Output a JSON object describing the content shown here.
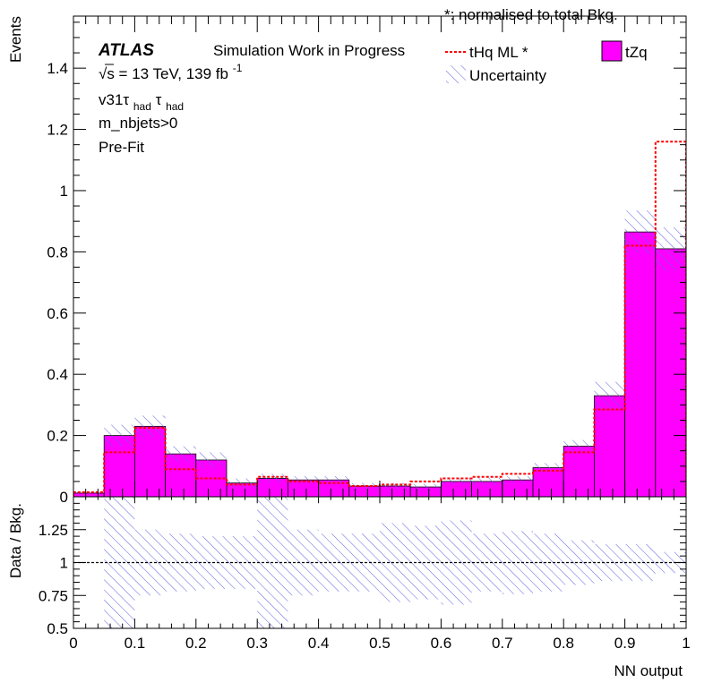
{
  "header": {
    "norm_note": "*: normalised to total Bkg.",
    "atlas": "ATLAS",
    "status": "Simulation Work in Progress",
    "energy": "√s = 13 TeV, 139 fb",
    "lumi_exp": "-1",
    "region_main": "v31τ",
    "region_sub1": "had",
    "region_tau2": "τ",
    "region_sub2": "had",
    "selection": "m_nbjets>0",
    "fit": "Pre-Fit"
  },
  "legend": {
    "signal": "tHq ML *",
    "uncertainty": "Uncertainty",
    "background": "tZq"
  },
  "colors": {
    "background_fill": "#ff00ff",
    "signal_line": "#ff0000",
    "uncertainty_hatch": "#6060e0",
    "ratio_line": "#000000"
  },
  "chart_data": [
    {
      "type": "bar",
      "panel": "main",
      "ylabel": "Events",
      "xlim": [
        0,
        1
      ],
      "ylim": [
        0,
        1.57
      ],
      "bin_edges": [
        0,
        0.05,
        0.1,
        0.15,
        0.2,
        0.25,
        0.3,
        0.35,
        0.4,
        0.45,
        0.5,
        0.55,
        0.6,
        0.65,
        0.7,
        0.75,
        0.8,
        0.85,
        0.9,
        0.95,
        1.0
      ],
      "yticks": [
        "0",
        "0.2",
        "0.4",
        "0.6",
        "0.8",
        "1",
        "1.2",
        "1.4"
      ],
      "series": [
        {
          "name": "tZq",
          "style": "filled",
          "values": [
            0.012,
            0.2,
            0.23,
            0.14,
            0.12,
            0.045,
            0.06,
            0.055,
            0.055,
            0.035,
            0.035,
            0.032,
            0.05,
            0.05,
            0.055,
            0.095,
            0.165,
            0.33,
            0.865,
            0.81
          ],
          "uncertainty": [
            0.004,
            0.035,
            0.035,
            0.025,
            0.025,
            0.015,
            0.015,
            0.012,
            0.012,
            0.01,
            0.01,
            0.01,
            0.01,
            0.012,
            0.012,
            0.015,
            0.02,
            0.045,
            0.07,
            0.07
          ]
        },
        {
          "name": "tHq ML *",
          "style": "dashed-step",
          "values": [
            0.015,
            0.145,
            0.225,
            0.09,
            0.06,
            0.04,
            0.065,
            0.05,
            0.045,
            0.035,
            0.04,
            0.05,
            0.06,
            0.065,
            0.075,
            0.085,
            0.145,
            0.285,
            0.82,
            1.16
          ]
        }
      ]
    },
    {
      "type": "bar",
      "panel": "ratio",
      "xlabel": "NN output",
      "ylabel": "Data / Bkg.",
      "xlim": [
        0,
        1
      ],
      "ylim": [
        0.5,
        1.5
      ],
      "xticks": [
        "0",
        "0.1",
        "0.2",
        "0.3",
        "0.4",
        "0.5",
        "0.6",
        "0.7",
        "0.8",
        "0.9",
        "1"
      ],
      "yticks": [
        "0.5",
        "0.75",
        "1",
        "1.25"
      ],
      "reference_line": 1,
      "uncertainty_band": [
        [
          1,
          1
        ],
        [
          0.5,
          1.5
        ],
        [
          0.75,
          1.25
        ],
        [
          0.78,
          1.22
        ],
        [
          0.8,
          1.2
        ],
        [
          0.8,
          1.2
        ],
        [
          0.5,
          1.5
        ],
        [
          0.75,
          1.25
        ],
        [
          0.78,
          1.22
        ],
        [
          0.78,
          1.22
        ],
        [
          0.7,
          1.3
        ],
        [
          0.72,
          1.28
        ],
        [
          0.68,
          1.32
        ],
        [
          0.78,
          1.22
        ],
        [
          0.76,
          1.24
        ],
        [
          0.78,
          1.22
        ],
        [
          0.83,
          1.17
        ],
        [
          0.86,
          1.14
        ],
        [
          0.86,
          1.14
        ],
        [
          0.92,
          1.08
        ],
        [
          0.91,
          1.09
        ]
      ]
    }
  ]
}
